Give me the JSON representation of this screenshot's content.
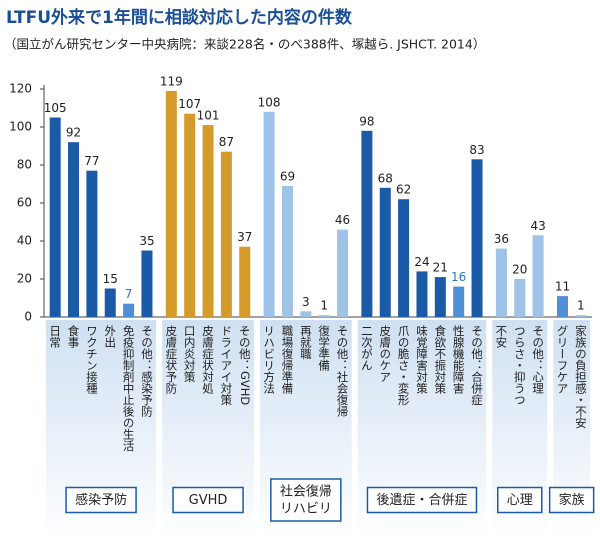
{
  "chart_data": {
    "type": "bar",
    "title": "LTFU外来で1年間に相談対応した内容の件数",
    "subtitle": "（国立がん研究センター中央病院：来談228名・のべ388件、塚越ら. JSHCT. 2014）",
    "ylim": [
      0,
      120
    ],
    "yticks": [
      0,
      20,
      40,
      60,
      80,
      100,
      120
    ],
    "groups": [
      {
        "name": [
          "感染予防"
        ],
        "categories": [
          "日常",
          "食事",
          "ワクチン接種",
          "外出",
          "免疫抑制剤中止後の生活",
          "その他：感染予防"
        ],
        "values": [
          105,
          92,
          77,
          15,
          7,
          35
        ],
        "colors": [
          "#1a5aa6",
          "#1a5aa6",
          "#1a5aa6",
          "#1a5aa6",
          "#4f8fd6",
          "#1a5aa6"
        ],
        "label_colors": [
          "#222",
          "#222",
          "#222",
          "#222",
          "#2f78c8",
          "#222"
        ]
      },
      {
        "name": [
          "GVHD"
        ],
        "categories": [
          "皮膚症状予防",
          "口内炎対策",
          "皮膚症状対処",
          "ドライアイ対策",
          "その他：GVHD"
        ],
        "values": [
          119,
          107,
          101,
          87,
          37
        ],
        "colors": [
          "#d49a2a",
          "#d49a2a",
          "#d49a2a",
          "#d49a2a",
          "#d49a2a"
        ],
        "label_colors": [
          "#222",
          "#222",
          "#222",
          "#222",
          "#222"
        ]
      },
      {
        "name": [
          "社会復帰",
          "リハビリ"
        ],
        "categories": [
          "リハビリ方法",
          "職場復帰準備",
          "再就職",
          "復学準備",
          "その他：社会復帰"
        ],
        "values": [
          108,
          69,
          3,
          1,
          46
        ],
        "colors": [
          "#9fc3e6",
          "#9fc3e6",
          "#9fc3e6",
          "#9fc3e6",
          "#9fc3e6"
        ],
        "label_colors": [
          "#222",
          "#222",
          "#222",
          "#222",
          "#222"
        ]
      },
      {
        "name": [
          "後遺症・合併症"
        ],
        "categories": [
          "二次がん",
          "皮膚のケア",
          "爪の脆さ・変形",
          "味覚障害対策",
          "食欲不振対策",
          "性腺機能障害",
          "その他：合併症"
        ],
        "values": [
          98,
          68,
          62,
          24,
          21,
          16,
          83
        ],
        "colors": [
          "#1a5aa6",
          "#1a5aa6",
          "#1a5aa6",
          "#1a5aa6",
          "#1a5aa6",
          "#4f8fd6",
          "#1a5aa6"
        ],
        "label_colors": [
          "#222",
          "#222",
          "#222",
          "#222",
          "#222",
          "#2f78c8",
          "#222"
        ]
      },
      {
        "name": [
          "心理"
        ],
        "categories": [
          "不安",
          "つらさ・抑うつ",
          "その他：心理"
        ],
        "values": [
          36,
          20,
          43
        ],
        "colors": [
          "#9fc3e6",
          "#9fc3e6",
          "#9fc3e6"
        ],
        "label_colors": [
          "#222",
          "#222",
          "#222"
        ]
      },
      {
        "name": [
          "家族"
        ],
        "categories": [
          "グリーフケア",
          "家族の負担感・不安"
        ],
        "values": [
          11,
          1
        ],
        "colors": [
          "#4f8fd6",
          "#9fc3e6"
        ],
        "label_colors": [
          "#222",
          "#222"
        ]
      }
    ]
  }
}
